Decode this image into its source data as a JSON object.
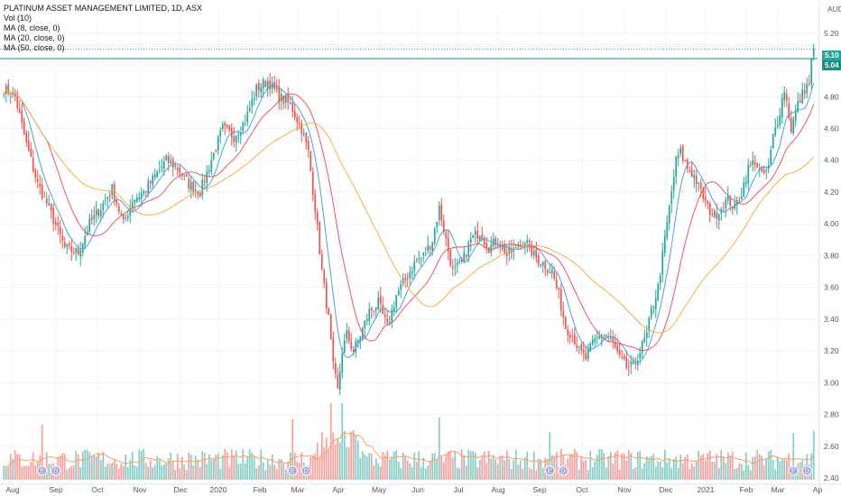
{
  "legend": {
    "title": "PLATINUM ASSET MANAGEMENT LIMITED, 1D, ASX",
    "vol": "Vol (10)",
    "ma8": "MA (8, close, 0)",
    "ma20": "MA (20, close, 0)",
    "ma50": "MA (50, close, 0)"
  },
  "currency": "AUD",
  "colors": {
    "up": "#26a69a",
    "down": "#ef5350",
    "ma8": "#4aa3d8",
    "ma20": "#e8595e",
    "ma50": "#f5b041",
    "volma": "#f4a261",
    "badge": "#26a69a",
    "event": "#9fa8da"
  },
  "price_badges": [
    "5.10",
    "5.04"
  ],
  "chart_data": {
    "type": "candlestick",
    "x_tick_labels": [
      "Aug",
      "Sep",
      "Oct",
      "Nov",
      "Dec",
      "2020",
      "Feb",
      "Mar",
      "Apr",
      "May",
      "Jun",
      "Jul",
      "Aug",
      "Sep",
      "Oct",
      "Nov",
      "Dec",
      "2021",
      "Feb",
      "Mar",
      "Ap"
    ],
    "y_tick_labels": [
      "5.20",
      "5.00",
      "4.80",
      "4.60",
      "4.40",
      "4.20",
      "4.00",
      "3.80",
      "3.60",
      "3.40",
      "3.20",
      "3.00",
      "2.80",
      "2.60",
      "2.40"
    ],
    "ylim": [
      2.4,
      5.3
    ],
    "last_close": 5.1,
    "prev_close": 5.04,
    "close_anchors": [
      [
        0,
        4.85
      ],
      [
        5,
        4.8
      ],
      [
        10,
        4.5
      ],
      [
        15,
        4.25
      ],
      [
        20,
        4.1
      ],
      [
        27,
        3.85
      ],
      [
        33,
        3.82
      ],
      [
        38,
        4.0
      ],
      [
        43,
        4.1
      ],
      [
        48,
        4.22
      ],
      [
        53,
        4.0
      ],
      [
        57,
        4.15
      ],
      [
        62,
        4.2
      ],
      [
        67,
        4.3
      ],
      [
        72,
        4.4
      ],
      [
        77,
        4.35
      ],
      [
        82,
        4.25
      ],
      [
        87,
        4.2
      ],
      [
        92,
        4.4
      ],
      [
        97,
        4.6
      ],
      [
        102,
        4.55
      ],
      [
        107,
        4.65
      ],
      [
        112,
        4.85
      ],
      [
        117,
        4.9
      ],
      [
        122,
        4.8
      ],
      [
        127,
        4.75
      ],
      [
        132,
        4.6
      ],
      [
        135,
        4.45
      ],
      [
        138,
        4.1
      ],
      [
        141,
        3.7
      ],
      [
        144,
        3.4
      ],
      [
        146,
        3.1
      ],
      [
        148,
        2.95
      ],
      [
        150,
        3.2
      ],
      [
        152,
        3.3
      ],
      [
        155,
        3.2
      ],
      [
        158,
        3.3
      ],
      [
        162,
        3.45
      ],
      [
        166,
        3.5
      ],
      [
        170,
        3.35
      ],
      [
        174,
        3.55
      ],
      [
        178,
        3.65
      ],
      [
        182,
        3.75
      ],
      [
        186,
        3.8
      ],
      [
        190,
        3.9
      ],
      [
        193,
        4.1
      ],
      [
        196,
        3.9
      ],
      [
        199,
        3.7
      ],
      [
        203,
        3.75
      ],
      [
        207,
        3.9
      ],
      [
        211,
        3.95
      ],
      [
        215,
        3.85
      ],
      [
        219,
        3.9
      ],
      [
        223,
        3.8
      ],
      [
        227,
        3.85
      ],
      [
        231,
        3.9
      ],
      [
        235,
        3.8
      ],
      [
        239,
        3.75
      ],
      [
        243,
        3.7
      ],
      [
        246,
        3.55
      ],
      [
        249,
        3.35
      ],
      [
        252,
        3.3
      ],
      [
        255,
        3.2
      ],
      [
        258,
        3.15
      ],
      [
        261,
        3.25
      ],
      [
        264,
        3.3
      ],
      [
        267,
        3.3
      ],
      [
        270,
        3.25
      ],
      [
        273,
        3.15
      ],
      [
        276,
        3.1
      ],
      [
        279,
        3.1
      ],
      [
        282,
        3.2
      ],
      [
        285,
        3.3
      ],
      [
        287,
        3.45
      ],
      [
        290,
        3.6
      ],
      [
        293,
        3.9
      ],
      [
        296,
        4.2
      ],
      [
        298,
        4.4
      ],
      [
        300,
        4.45
      ],
      [
        303,
        4.35
      ],
      [
        306,
        4.3
      ],
      [
        309,
        4.2
      ],
      [
        312,
        4.1
      ],
      [
        315,
        4.05
      ],
      [
        318,
        4.1
      ],
      [
        321,
        4.15
      ],
      [
        324,
        4.1
      ],
      [
        327,
        4.2
      ],
      [
        330,
        4.35
      ],
      [
        333,
        4.4
      ],
      [
        336,
        4.3
      ],
      [
        339,
        4.35
      ],
      [
        341,
        4.55
      ],
      [
        343,
        4.65
      ],
      [
        346,
        4.85
      ],
      [
        349,
        4.6
      ],
      [
        352,
        4.75
      ],
      [
        355,
        4.85
      ],
      [
        358,
        4.9
      ],
      [
        359,
        5.1
      ]
    ],
    "volume_ylim": [
      0,
      3.2
    ],
    "series": [
      {
        "name": "Vol (10)",
        "kind": "volume"
      },
      {
        "name": "MA (8, close, 0)",
        "kind": "ma",
        "period": 8
      },
      {
        "name": "MA (20, close, 0)",
        "kind": "ma",
        "period": 20
      },
      {
        "name": "MA (50, close, 0)",
        "kind": "ma",
        "period": 50
      }
    ],
    "events": [
      {
        "letter": "E",
        "x_index": 17
      },
      {
        "letter": "D",
        "x_index": 23
      },
      {
        "letter": "E",
        "x_index": 128
      },
      {
        "letter": "D",
        "x_index": 134
      },
      {
        "letter": "E",
        "x_index": 242
      },
      {
        "letter": "D",
        "x_index": 248
      },
      {
        "letter": "E",
        "x_index": 350
      },
      {
        "letter": "D",
        "x_index": 356
      }
    ],
    "grid": true,
    "legend_position": "top-left"
  }
}
